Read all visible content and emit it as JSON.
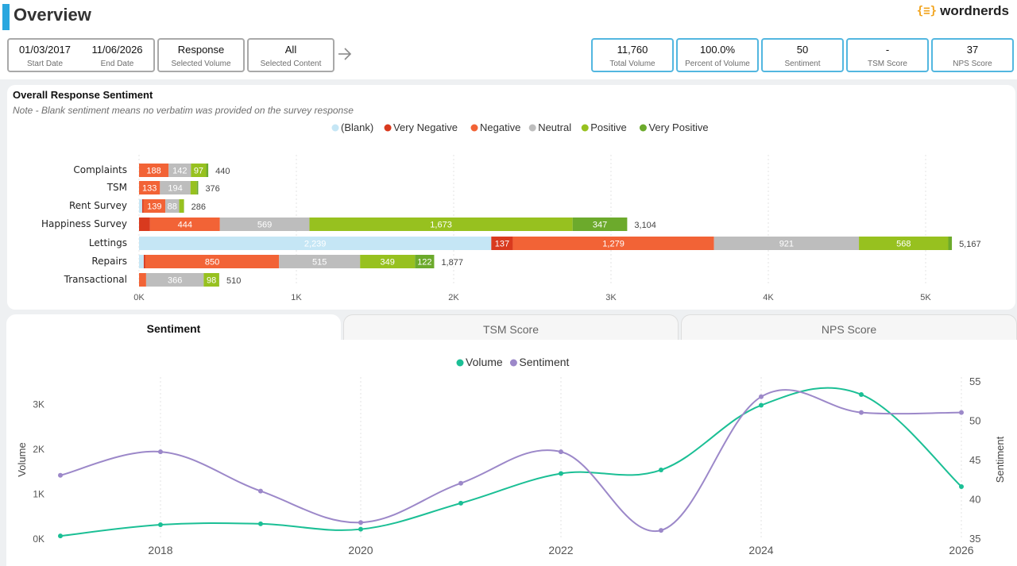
{
  "header": {
    "title": "Overview",
    "logo_mark": "{≡}",
    "logo_text": "wordnerds"
  },
  "filters": {
    "start_date": "01/03/2017",
    "start_label": "Start Date",
    "end_date": "11/06/2026",
    "end_label": "End Date",
    "volume_value": "Response",
    "volume_label": "Selected Volume",
    "content_value": "All",
    "content_label": "Selected Content",
    "arrow_icon": "arrow-right-icon"
  },
  "kpis": [
    {
      "value": "11,760",
      "label": "Total Volume"
    },
    {
      "value": "100.0%",
      "label": "Percent of Volume"
    },
    {
      "value": "50",
      "label": "Sentiment"
    },
    {
      "value": "-",
      "label": "TSM Score"
    },
    {
      "value": "37",
      "label": "NPS Score"
    }
  ],
  "sentiment_card": {
    "title": "Overall Response Sentiment",
    "note": "Note - Blank sentiment means no verbatim was provided on the survey response"
  },
  "tabs": [
    {
      "label": "Sentiment",
      "active": true
    },
    {
      "label": "TSM Score",
      "active": false
    },
    {
      "label": "NPS Score",
      "active": false
    }
  ],
  "colors": {
    "accent": "#2aa7df",
    "kpi_border": "#53b7e0",
    "volume": "#1bbf95",
    "sentiment": "#9c88c9"
  },
  "chart_data": [
    {
      "type": "bar",
      "orientation": "horizontal",
      "stacked": true,
      "categories": [
        "Complaints",
        "TSM",
        "Rent Survey",
        "Happiness Survey",
        "Lettings",
        "Repairs",
        "Transactional"
      ],
      "series": [
        {
          "name": "(Blank)",
          "color": "#c5e6f5",
          "values": [
            0,
            0,
            20,
            0,
            2239,
            30,
            0
          ]
        },
        {
          "name": "Very Negative",
          "color": "#d93a1e",
          "values": [
            0,
            0,
            8,
            70,
            137,
            10,
            0
          ]
        },
        {
          "name": "Negative",
          "color": "#f26336",
          "values": [
            188,
            133,
            139,
            444,
            1279,
            850,
            45
          ]
        },
        {
          "name": "Neutral",
          "color": "#bdbdbd",
          "values": [
            142,
            194,
            88,
            569,
            921,
            515,
            366
          ]
        },
        {
          "name": "Positive",
          "color": "#97c11f",
          "values": [
            97,
            40,
            30,
            1673,
            568,
            349,
            98
          ]
        },
        {
          "name": "Very Positive",
          "color": "#6caa2c",
          "values": [
            13,
            9,
            1,
            347,
            23,
            122,
            1
          ]
        }
      ],
      "value_labels": [
        [
          null,
          null,
          null,
          null,
          "2,239",
          null,
          null
        ],
        [
          null,
          null,
          null,
          null,
          "137",
          null,
          null
        ],
        [
          "188",
          "133",
          "139",
          "444",
          "1,279",
          "850",
          null
        ],
        [
          "142",
          "194",
          "88",
          "569",
          "921",
          "515",
          "366"
        ],
        [
          "97",
          null,
          null,
          "1,673",
          "568",
          "349",
          "98"
        ],
        [
          null,
          null,
          null,
          "347",
          null,
          "122",
          null
        ]
      ],
      "totals": [
        "440",
        "376",
        "286",
        "3,104",
        "5,167",
        "1,877",
        "510"
      ],
      "xlim": [
        0,
        5500
      ],
      "xticks": [
        0,
        1000,
        2000,
        3000,
        4000,
        5000
      ],
      "xtick_labels": [
        "0K",
        "1K",
        "2K",
        "3K",
        "4K",
        "5K"
      ],
      "legend": [
        "(Blank)",
        "Very Negative",
        "Negative",
        "Neutral",
        "Positive",
        "Very Positive"
      ],
      "legend_position": "top-center",
      "grid": true
    },
    {
      "type": "line",
      "x": [
        2017,
        2018,
        2019,
        2020,
        2021,
        2022,
        2023,
        2024,
        2025,
        2026
      ],
      "series": [
        {
          "name": "Volume",
          "axis": "left",
          "color": "#1bbf95",
          "values": [
            50,
            300,
            320,
            200,
            780,
            1440,
            1520,
            2960,
            3200,
            1150
          ]
        },
        {
          "name": "Sentiment",
          "axis": "right",
          "color": "#9c88c9",
          "values": [
            43,
            46,
            41,
            37,
            42,
            46,
            36,
            53,
            51,
            51
          ]
        }
      ],
      "xticks": [
        2018,
        2020,
        2022,
        2024,
        2026
      ],
      "xlim": [
        2017,
        2026
      ],
      "ylabel_left": "Volume",
      "ylim_left": [
        0,
        3500
      ],
      "yticks_left": [
        0,
        1000,
        2000,
        3000
      ],
      "ytick_labels_left": [
        "0K",
        "1K",
        "2K",
        "3K"
      ],
      "ylabel_right": "Sentiment",
      "ylim_right": [
        35,
        55
      ],
      "yticks_right": [
        35,
        40,
        45,
        50,
        55
      ],
      "legend": [
        "Volume",
        "Sentiment"
      ],
      "legend_position": "top-center",
      "grid": true
    }
  ]
}
